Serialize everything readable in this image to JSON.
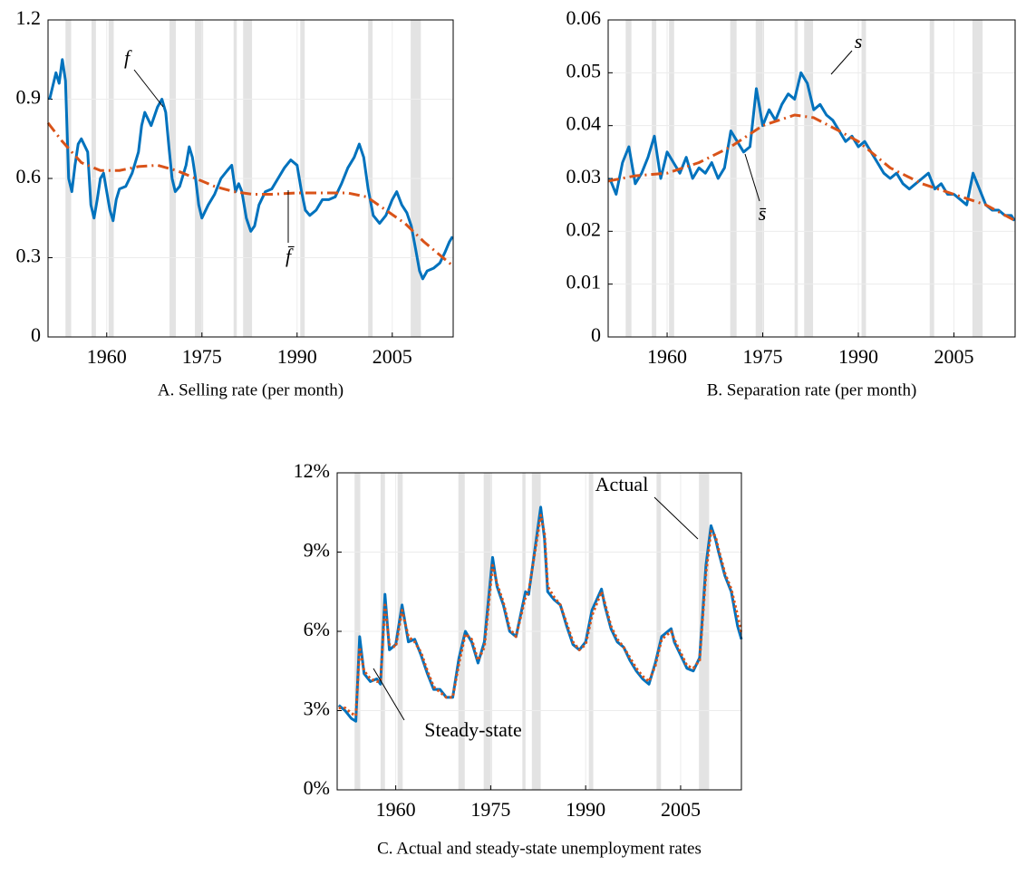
{
  "chart_data": [
    {
      "type": "line",
      "title": "A.  Selling rate (per month)",
      "xlim": [
        1950.75,
        2014.6
      ],
      "xticks": [
        1960,
        1975,
        1990,
        2005
      ],
      "ylim": [
        0,
        1.2
      ],
      "yticks": [
        0,
        0.3,
        0.6,
        0.9,
        1.2
      ],
      "grid": true,
      "recessions": [
        [
          1953.5,
          1954.4
        ],
        [
          1957.6,
          1958.3
        ],
        [
          1960.3,
          1961.1
        ],
        [
          1969.9,
          1970.9
        ],
        [
          1973.9,
          1975.2
        ],
        [
          1980.0,
          1980.5
        ],
        [
          1981.5,
          1982.9
        ],
        [
          1990.5,
          1991.2
        ],
        [
          2001.2,
          2001.9
        ],
        [
          2007.9,
          2009.5
        ]
      ],
      "series": [
        {
          "color": "#0072bd",
          "style": "solid",
          "annotation": "f",
          "x": [
            1951,
            1951.5,
            1952,
            1952.5,
            1953,
            1953.5,
            1954,
            1954.5,
            1955,
            1955.5,
            1956,
            1957,
            1957.5,
            1958,
            1958.5,
            1959,
            1959.5,
            1960,
            1960.5,
            1961,
            1961.5,
            1962,
            1963,
            1964,
            1965,
            1965.5,
            1966,
            1967,
            1968,
            1968.7,
            1969.3,
            1969.8,
            1970.3,
            1970.8,
            1971.5,
            1972.5,
            1973,
            1973.5,
            1974,
            1974.5,
            1975,
            1976,
            1977,
            1978,
            1979,
            1979.7,
            1980.3,
            1980.8,
            1981.3,
            1982,
            1982.7,
            1983.3,
            1984,
            1985,
            1986,
            1987,
            1988,
            1989,
            1990,
            1990.7,
            1991.3,
            1992,
            1993,
            1994,
            1995,
            1996,
            1997,
            1998,
            1999,
            1999.8,
            2000.5,
            2001.2,
            2002,
            2003,
            2004,
            2005,
            2005.7,
            2006.5,
            2007.3,
            2008,
            2008.7,
            2009.3,
            2009.8,
            2010.5,
            2011.5,
            2012.5,
            2013.3,
            2014,
            2014.5
          ],
          "values": [
            0.9,
            0.95,
            1.0,
            0.96,
            1.05,
            0.97,
            0.6,
            0.55,
            0.65,
            0.73,
            0.75,
            0.7,
            0.5,
            0.45,
            0.52,
            0.6,
            0.62,
            0.55,
            0.48,
            0.44,
            0.52,
            0.56,
            0.57,
            0.62,
            0.7,
            0.8,
            0.85,
            0.8,
            0.87,
            0.9,
            0.85,
            0.72,
            0.6,
            0.55,
            0.57,
            0.65,
            0.72,
            0.68,
            0.6,
            0.5,
            0.45,
            0.5,
            0.54,
            0.6,
            0.63,
            0.65,
            0.55,
            0.58,
            0.55,
            0.45,
            0.4,
            0.42,
            0.5,
            0.55,
            0.56,
            0.6,
            0.64,
            0.67,
            0.65,
            0.55,
            0.48,
            0.46,
            0.48,
            0.52,
            0.52,
            0.53,
            0.58,
            0.64,
            0.68,
            0.73,
            0.68,
            0.56,
            0.46,
            0.43,
            0.46,
            0.52,
            0.55,
            0.5,
            0.47,
            0.42,
            0.33,
            0.25,
            0.22,
            0.25,
            0.26,
            0.28,
            0.32,
            0.36,
            0.38
          ]
        },
        {
          "color": "#d95319",
          "style": "dashdot",
          "annotation": "f̄",
          "x": [
            1950.75,
            1953,
            1956,
            1959,
            1962,
            1965,
            1968,
            1971,
            1974,
            1977,
            1980,
            1983,
            1986,
            1990,
            1994,
            1998,
            2001,
            2004,
            2007,
            2010,
            2014.5
          ],
          "values": [
            0.81,
            0.74,
            0.66,
            0.63,
            0.63,
            0.645,
            0.65,
            0.63,
            0.6,
            0.57,
            0.55,
            0.54,
            0.54,
            0.545,
            0.545,
            0.545,
            0.53,
            0.48,
            0.43,
            0.36,
            0.27
          ]
        }
      ]
    },
    {
      "type": "line",
      "title": "B.  Separation rate (per month)",
      "xlim": [
        1950.75,
        2014.6
      ],
      "xticks": [
        1960,
        1975,
        1990,
        2005
      ],
      "ylim": [
        0,
        0.06
      ],
      "yticks": [
        0,
        0.01,
        0.02,
        0.03,
        0.04,
        0.05,
        0.06
      ],
      "grid": true,
      "recessions": [
        [
          1953.5,
          1954.4
        ],
        [
          1957.6,
          1958.3
        ],
        [
          1960.3,
          1961.1
        ],
        [
          1969.9,
          1970.9
        ],
        [
          1973.9,
          1975.2
        ],
        [
          1980.0,
          1980.5
        ],
        [
          1981.5,
          1982.9
        ],
        [
          1990.5,
          1991.2
        ],
        [
          2001.2,
          2001.9
        ],
        [
          2007.9,
          2009.5
        ]
      ],
      "series": [
        {
          "color": "#0072bd",
          "style": "solid",
          "annotation": "s",
          "x": [
            1951,
            1952,
            1953,
            1954,
            1955,
            1956,
            1957,
            1958,
            1959,
            1960,
            1961,
            1962,
            1963,
            1964,
            1965,
            1966,
            1967,
            1968,
            1969,
            1970,
            1971,
            1972,
            1973,
            1974,
            1975,
            1976,
            1977,
            1978,
            1979,
            1980,
            1981,
            1982,
            1983,
            1984,
            1985,
            1986,
            1987,
            1988,
            1989,
            1990,
            1991,
            1992,
            1993,
            1994,
            1995,
            1996,
            1997,
            1998,
            1999,
            2000,
            2001,
            2002,
            2003,
            2004,
            2005,
            2006,
            2007,
            2008,
            2009,
            2010,
            2011,
            2012,
            2013,
            2014,
            2014.5
          ],
          "values": [
            0.03,
            0.027,
            0.033,
            0.036,
            0.029,
            0.031,
            0.034,
            0.038,
            0.03,
            0.035,
            0.033,
            0.031,
            0.034,
            0.03,
            0.032,
            0.031,
            0.033,
            0.03,
            0.032,
            0.039,
            0.037,
            0.035,
            0.036,
            0.047,
            0.04,
            0.043,
            0.041,
            0.044,
            0.046,
            0.045,
            0.05,
            0.048,
            0.043,
            0.044,
            0.042,
            0.041,
            0.039,
            0.037,
            0.038,
            0.036,
            0.037,
            0.035,
            0.033,
            0.031,
            0.03,
            0.031,
            0.029,
            0.028,
            0.029,
            0.03,
            0.031,
            0.028,
            0.029,
            0.027,
            0.027,
            0.026,
            0.025,
            0.031,
            0.028,
            0.025,
            0.024,
            0.024,
            0.023,
            0.023,
            0.022
          ]
        },
        {
          "color": "#d95319",
          "style": "dashdot",
          "annotation": "s̄",
          "x": [
            1950.75,
            1955,
            1960,
            1965,
            1970,
            1975,
            1980,
            1983,
            1987,
            1990,
            1995,
            2000,
            2005,
            2010,
            2014.6
          ],
          "values": [
            0.0295,
            0.0305,
            0.031,
            0.033,
            0.036,
            0.04,
            0.042,
            0.0415,
            0.039,
            0.037,
            0.032,
            0.029,
            0.027,
            0.025,
            0.022
          ]
        }
      ]
    },
    {
      "type": "line",
      "title": "C.  Actual and steady-state unemployment rates",
      "xlim": [
        1950.75,
        2014.6
      ],
      "xticks": [
        1960,
        1975,
        1990,
        2005
      ],
      "ylim": [
        0,
        12
      ],
      "yticks": [
        {
          "value": 0,
          "label": "0%"
        },
        {
          "value": 3,
          "label": "3%"
        },
        {
          "value": 6,
          "label": "6%"
        },
        {
          "value": 9,
          "label": "9%"
        },
        {
          "value": 12,
          "label": "12%"
        }
      ],
      "grid": true,
      "recessions": [
        [
          1953.5,
          1954.4
        ],
        [
          1957.6,
          1958.3
        ],
        [
          1960.3,
          1961.1
        ],
        [
          1969.9,
          1970.9
        ],
        [
          1973.9,
          1975.2
        ],
        [
          1980.0,
          1980.5
        ],
        [
          1981.5,
          1982.9
        ],
        [
          1990.5,
          1991.2
        ],
        [
          2001.2,
          2001.9
        ],
        [
          2007.9,
          2009.5
        ]
      ],
      "series": [
        {
          "color": "#0072bd",
          "style": "solid",
          "annotation": "Actual",
          "x": [
            1951,
            1952,
            1953,
            1953.7,
            1954.3,
            1955,
            1956,
            1957,
            1957.6,
            1958.3,
            1959,
            1960,
            1961,
            1962,
            1963,
            1964,
            1965,
            1966,
            1967,
            1968,
            1969,
            1970,
            1971,
            1972,
            1973,
            1974,
            1975.3,
            1976,
            1977,
            1978,
            1979,
            1980.5,
            1981,
            1982.9,
            1983.5,
            1984,
            1985,
            1986,
            1987,
            1988,
            1989,
            1990,
            1991,
            1992.5,
            1993,
            1994,
            1995,
            1996,
            1997,
            1998,
            1999,
            2000,
            2001,
            2002,
            2003.5,
            2004,
            2005,
            2006,
            2007,
            2008,
            2009,
            2009.8,
            2010.5,
            2011,
            2012,
            2013,
            2014,
            2014.6
          ],
          "values": [
            3.2,
            3.0,
            2.7,
            2.6,
            5.8,
            4.4,
            4.1,
            4.2,
            4.0,
            7.4,
            5.3,
            5.5,
            7.0,
            5.6,
            5.7,
            5.1,
            4.4,
            3.8,
            3.8,
            3.5,
            3.5,
            5.0,
            6.0,
            5.6,
            4.8,
            5.6,
            8.8,
            7.7,
            7.0,
            6.0,
            5.8,
            7.5,
            7.4,
            10.7,
            9.5,
            7.5,
            7.2,
            7.0,
            6.2,
            5.5,
            5.3,
            5.6,
            6.8,
            7.6,
            7.0,
            6.1,
            5.6,
            5.4,
            4.9,
            4.5,
            4.2,
            4.0,
            4.8,
            5.8,
            6.1,
            5.6,
            5.1,
            4.6,
            4.5,
            5.0,
            8.5,
            10.0,
            9.5,
            9.0,
            8.1,
            7.5,
            6.2,
            5.7
          ]
        },
        {
          "color": "#d95319",
          "style": "dotted",
          "annotation": "Steady-state",
          "x": [
            1951,
            1952,
            1953,
            1953.7,
            1954.3,
            1955,
            1956,
            1957,
            1957.6,
            1958.3,
            1959,
            1960,
            1961,
            1962,
            1963,
            1964,
            1965,
            1966,
            1967,
            1968,
            1969,
            1970,
            1971,
            1972,
            1973,
            1974,
            1975.3,
            1976,
            1977,
            1978,
            1979,
            1980.5,
            1981,
            1982.9,
            1983.5,
            1984,
            1985,
            1986,
            1987,
            1988,
            1989,
            1990,
            1991,
            1992.5,
            1993,
            1994,
            1995,
            1996,
            1997,
            1998,
            1999,
            2000,
            2001,
            2002,
            2003.5,
            2004,
            2005,
            2006,
            2007,
            2008,
            2009,
            2009.8,
            2010.5,
            2011,
            2012,
            2013,
            2014,
            2014.6
          ],
          "values": [
            3.1,
            3.1,
            2.9,
            2.8,
            5.4,
            4.5,
            4.2,
            4.1,
            4.1,
            7.0,
            5.5,
            5.4,
            6.8,
            5.8,
            5.6,
            5.2,
            4.5,
            3.9,
            3.7,
            3.5,
            3.5,
            4.8,
            5.9,
            5.7,
            4.9,
            5.4,
            8.5,
            7.8,
            7.1,
            6.1,
            5.8,
            7.3,
            7.5,
            10.4,
            9.7,
            7.7,
            7.3,
            7.0,
            6.3,
            5.6,
            5.3,
            5.5,
            6.6,
            7.5,
            7.1,
            6.2,
            5.7,
            5.4,
            5.0,
            4.6,
            4.3,
            4.1,
            4.7,
            5.7,
            6.0,
            5.7,
            5.2,
            4.7,
            4.6,
            4.9,
            8.2,
            9.8,
            9.6,
            9.1,
            8.2,
            7.6,
            6.6,
            5.9
          ]
        }
      ]
    }
  ]
}
